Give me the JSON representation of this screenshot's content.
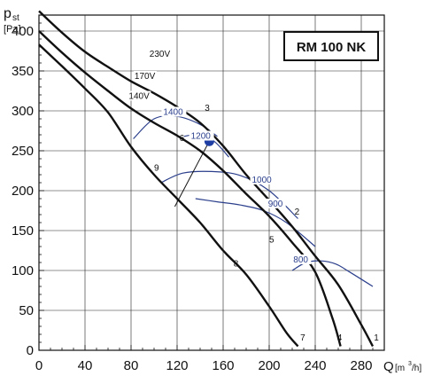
{
  "chart_data": {
    "type": "line",
    "title": "RM 100 NK",
    "ylabel_main": "p",
    "ylabel_sub": "st",
    "ylabel_unit": "[Pa]",
    "xlabel_main": "Q",
    "xlabel_unit_pre": "[m",
    "xlabel_unit_sup": "3",
    "xlabel_unit_post": "/h]",
    "xlim": [
      0,
      300
    ],
    "ylim": [
      0,
      420
    ],
    "xticks": [
      "0",
      "40",
      "80",
      "120",
      "160",
      "200",
      "240",
      "280"
    ],
    "yticks": [
      "0",
      "50",
      "100",
      "150",
      "200",
      "250",
      "300",
      "350",
      "400"
    ],
    "grid": true,
    "fan_curves": [
      {
        "name": "230V",
        "label_x": 96,
        "label_y": 368,
        "points": [
          [
            0,
            425
          ],
          [
            20,
            398
          ],
          [
            40,
            374
          ],
          [
            60,
            355
          ],
          [
            80,
            337
          ],
          [
            100,
            322
          ],
          [
            120,
            305
          ],
          [
            140,
            285
          ],
          [
            160,
            256
          ],
          [
            180,
            220
          ],
          [
            200,
            188
          ],
          [
            220,
            155
          ],
          [
            240,
            118
          ],
          [
            260,
            82
          ],
          [
            280,
            32
          ],
          [
            290,
            5
          ]
        ]
      },
      {
        "name": "170V",
        "label_x": 83,
        "label_y": 340,
        "points": [
          [
            0,
            400
          ],
          [
            20,
            373
          ],
          [
            40,
            348
          ],
          [
            60,
            325
          ],
          [
            80,
            303
          ],
          [
            100,
            285
          ],
          [
            120,
            269
          ],
          [
            140,
            250
          ],
          [
            160,
            225
          ],
          [
            180,
            196
          ],
          [
            200,
            168
          ],
          [
            220,
            135
          ],
          [
            240,
            98
          ],
          [
            255,
            40
          ],
          [
            262,
            5
          ]
        ]
      },
      {
        "name": "140V",
        "label_x": 78,
        "label_y": 315,
        "points": [
          [
            0,
            383
          ],
          [
            20,
            356
          ],
          [
            40,
            328
          ],
          [
            60,
            298
          ],
          [
            80,
            255
          ],
          [
            100,
            220
          ],
          [
            120,
            190
          ],
          [
            140,
            160
          ],
          [
            160,
            125
          ],
          [
            180,
            95
          ],
          [
            200,
            55
          ],
          [
            215,
            22
          ],
          [
            225,
            5
          ]
        ]
      }
    ],
    "iso_curves": [
      {
        "name": "1400",
        "label_x": 108,
        "label_y": 295,
        "points": [
          [
            82,
            265
          ],
          [
            100,
            290
          ],
          [
            120,
            293
          ],
          [
            140,
            283
          ],
          [
            155,
            268
          ]
        ]
      },
      {
        "name": "1200",
        "label_x": 132,
        "label_y": 265,
        "points": [
          [
            126,
            268
          ],
          [
            138,
            270
          ],
          [
            152,
            262
          ],
          [
            165,
            242
          ]
        ]
      },
      {
        "name": "1000",
        "label_x": 185,
        "label_y": 210,
        "points": [
          [
            106,
            210
          ],
          [
            125,
            222
          ],
          [
            150,
            224
          ],
          [
            175,
            219
          ],
          [
            200,
            200
          ],
          [
            225,
            165
          ]
        ]
      },
      {
        "name": "900",
        "label_x": 199,
        "label_y": 180,
        "points": [
          [
            136,
            190
          ],
          [
            155,
            186
          ],
          [
            175,
            182
          ],
          [
            195,
            175
          ],
          [
            215,
            160
          ],
          [
            240,
            130
          ]
        ]
      },
      {
        "name": "800",
        "label_x": 221,
        "label_y": 110,
        "points": [
          [
            220,
            100
          ],
          [
            232,
            110
          ],
          [
            245,
            112
          ],
          [
            258,
            108
          ],
          [
            270,
            98
          ],
          [
            290,
            80
          ]
        ]
      }
    ],
    "system_line": {
      "points": [
        [
          148,
          262
        ],
        [
          118,
          180
        ]
      ]
    },
    "operating_point": {
      "x": 148,
      "y": 262
    },
    "point_labels": [
      {
        "text": "1",
        "x": 291,
        "y": 12
      },
      {
        "text": "2",
        "x": 222,
        "y": 170
      },
      {
        "text": "3",
        "x": 144,
        "y": 300
      },
      {
        "text": "4",
        "x": 259,
        "y": 12
      },
      {
        "text": "5",
        "x": 200,
        "y": 135
      },
      {
        "text": "6",
        "x": 122,
        "y": 262
      },
      {
        "text": "7",
        "x": 227,
        "y": 12
      },
      {
        "text": "8",
        "x": 169,
        "y": 105
      },
      {
        "text": "9",
        "x": 100,
        "y": 225
      }
    ],
    "colors": {
      "fan_curve": "#111111",
      "iso_curve": "#2b3f8c",
      "operating_point": "#1f3ea3",
      "grid": "#222222"
    }
  }
}
